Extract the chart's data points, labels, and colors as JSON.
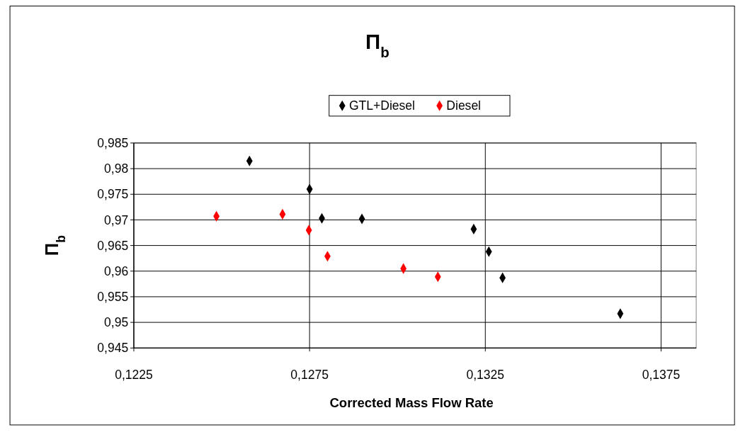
{
  "chart_data": {
    "type": "scatter",
    "title": "Π$_{b}$",
    "xlabel": "Corrected Mass Flow Rate",
    "ylabel": "Π$_{b}$",
    "series": [
      {
        "name": "GTL+Diesel",
        "color": "#000000",
        "x": [
          0.12579,
          0.1275,
          0.12785,
          0.12899,
          0.13217,
          0.1326,
          0.13299,
          0.13634
        ],
        "values": [
          0.9815,
          0.976,
          0.9703,
          0.9702,
          0.9682,
          0.9638,
          0.9587,
          0.9517
        ]
      },
      {
        "name": "Diesel",
        "color": "#ff0000",
        "x": [
          0.12485,
          0.12673,
          0.12748,
          0.12801,
          0.13017,
          0.13115
        ],
        "values": [
          0.9707,
          0.9711,
          0.968,
          0.9629,
          0.9605,
          0.9589
        ]
      }
    ],
    "xlim": [
      0.1225,
      0.1385
    ],
    "xticks": [
      {
        "value": 0.1225,
        "label": "0,1225"
      },
      {
        "value": 0.1275,
        "label": "0,1275"
      },
      {
        "value": 0.1325,
        "label": "0,1325"
      },
      {
        "value": 0.1375,
        "label": "0,1375"
      }
    ],
    "ylim": [
      0.945,
      0.985
    ],
    "yticks": [
      {
        "value": 0.945,
        "label": "0,945"
      },
      {
        "value": 0.95,
        "label": "0,95"
      },
      {
        "value": 0.955,
        "label": "0,955"
      },
      {
        "value": 0.96,
        "label": "0,96"
      },
      {
        "value": 0.965,
        "label": "0,965"
      },
      {
        "value": 0.97,
        "label": "0,97"
      },
      {
        "value": 0.975,
        "label": "0,975"
      },
      {
        "value": 0.98,
        "label": "0,98"
      },
      {
        "value": 0.985,
        "label": "0,985"
      }
    ],
    "grid": true,
    "legend": "top",
    "marker": "diamond"
  }
}
